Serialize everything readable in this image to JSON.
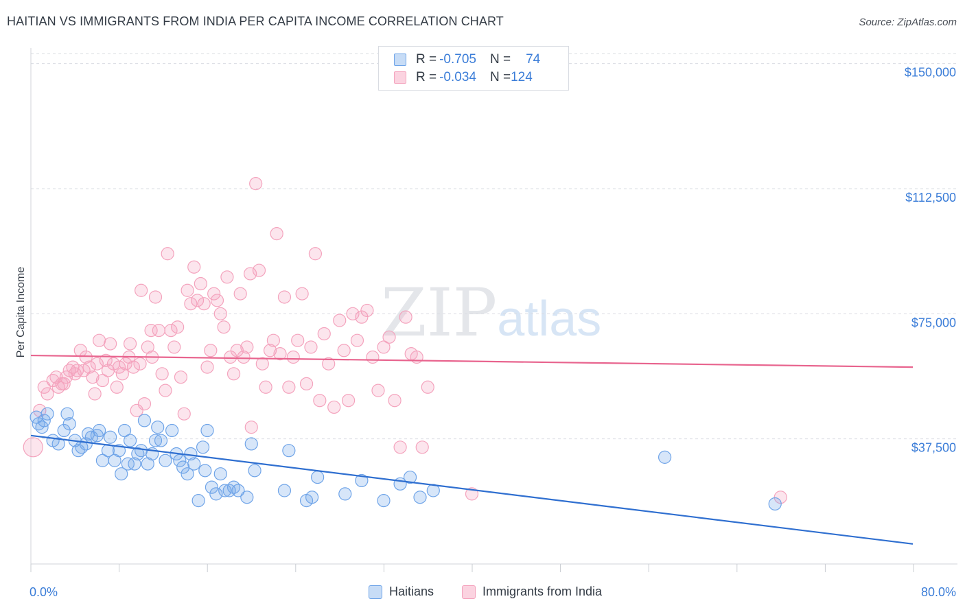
{
  "title": "HAITIAN VS IMMIGRANTS FROM INDIA PER CAPITA INCOME CORRELATION CHART",
  "source": "Source: ZipAtlas.com",
  "watermark": {
    "zip": "ZIP",
    "atlas": "atlas"
  },
  "colors": {
    "haitians": "#6fa4e8",
    "haitians_line": "#2f6fd0",
    "india": "#f4a3bd",
    "india_line": "#e8648e",
    "grid": "#d9dce2",
    "tick_text": "#3b7dd8"
  },
  "legend": {
    "rows": [
      {
        "r_label": "R = ",
        "r_value": "-0.705",
        "n_label": "N = ",
        "n_value": "74"
      },
      {
        "r_label": "R = ",
        "r_value": "-0.034",
        "n_label": "N = ",
        "n_value": "124"
      }
    ]
  },
  "bottom_legend": [
    "Haitians",
    "Immigrants from India"
  ],
  "chart_data": {
    "type": "scatter",
    "title": "HAITIAN VS IMMIGRANTS FROM INDIA PER CAPITA INCOME CORRELATION CHART",
    "xlabel": "",
    "ylabel": "Per Capita Income",
    "xlim": [
      0,
      80
    ],
    "ylim": [
      0,
      153000
    ],
    "x_tick_labels": [
      "0.0%",
      "80.0%"
    ],
    "y_ticks": [
      37500,
      75000,
      112500,
      150000
    ],
    "y_tick_labels": [
      "$37,500",
      "$75,000",
      "$112,500",
      "$150,000"
    ],
    "grid": true,
    "legend_position": "top-center",
    "series": [
      {
        "name": "Haitians",
        "r": -0.705,
        "n": 74,
        "trend": [
          [
            0,
            38500
          ],
          [
            80,
            6000
          ]
        ],
        "points": [
          [
            0.5,
            44000
          ],
          [
            0.7,
            42000
          ],
          [
            1.0,
            41000
          ],
          [
            1.2,
            43000
          ],
          [
            1.5,
            45000
          ],
          [
            2.0,
            37000
          ],
          [
            2.5,
            36000
          ],
          [
            3.0,
            40000
          ],
          [
            3.3,
            45000
          ],
          [
            3.5,
            42000
          ],
          [
            4.0,
            37000
          ],
          [
            4.3,
            34000
          ],
          [
            4.6,
            35000
          ],
          [
            5.0,
            36000
          ],
          [
            5.2,
            39000
          ],
          [
            5.5,
            38000
          ],
          [
            6.0,
            38500
          ],
          [
            6.2,
            40000
          ],
          [
            6.5,
            31000
          ],
          [
            7.0,
            34000
          ],
          [
            7.2,
            38000
          ],
          [
            7.6,
            31000
          ],
          [
            8.0,
            34000
          ],
          [
            8.2,
            27000
          ],
          [
            8.5,
            40000
          ],
          [
            8.8,
            30000
          ],
          [
            9.0,
            37000
          ],
          [
            9.4,
            30000
          ],
          [
            9.7,
            33000
          ],
          [
            10.0,
            34000
          ],
          [
            10.3,
            43000
          ],
          [
            10.6,
            30000
          ],
          [
            11.0,
            33000
          ],
          [
            11.3,
            37000
          ],
          [
            11.5,
            41000
          ],
          [
            11.8,
            37000
          ],
          [
            12.2,
            31000
          ],
          [
            12.8,
            40000
          ],
          [
            13.2,
            33000
          ],
          [
            13.5,
            31000
          ],
          [
            13.8,
            29000
          ],
          [
            14.2,
            27000
          ],
          [
            14.5,
            33000
          ],
          [
            14.8,
            30000
          ],
          [
            15.2,
            19000
          ],
          [
            15.6,
            35000
          ],
          [
            15.8,
            28000
          ],
          [
            16.0,
            40000
          ],
          [
            16.4,
            23000
          ],
          [
            16.8,
            21000
          ],
          [
            17.2,
            27000
          ],
          [
            17.6,
            22000
          ],
          [
            18.0,
            22000
          ],
          [
            18.4,
            23000
          ],
          [
            18.8,
            22000
          ],
          [
            19.6,
            20000
          ],
          [
            20.0,
            36000
          ],
          [
            20.3,
            28000
          ],
          [
            23.0,
            22000
          ],
          [
            23.4,
            34000
          ],
          [
            25.0,
            19000
          ],
          [
            25.5,
            20000
          ],
          [
            26.0,
            26000
          ],
          [
            28.5,
            21000
          ],
          [
            30.0,
            25000
          ],
          [
            32.0,
            19000
          ],
          [
            33.5,
            24000
          ],
          [
            34.4,
            26000
          ],
          [
            35.3,
            20000
          ],
          [
            36.5,
            22000
          ],
          [
            57.5,
            32000
          ],
          [
            67.5,
            18000
          ]
        ]
      },
      {
        "name": "Immigrants from India",
        "r": -0.034,
        "n": 124,
        "trend": [
          [
            0,
            62500
          ],
          [
            80,
            59000
          ]
        ],
        "points": [
          [
            0.2,
            35000
          ],
          [
            0.8,
            46000
          ],
          [
            1.2,
            53000
          ],
          [
            1.5,
            51000
          ],
          [
            2.0,
            55000
          ],
          [
            2.3,
            56000
          ],
          [
            2.5,
            53000
          ],
          [
            2.8,
            54000
          ],
          [
            3.0,
            54000
          ],
          [
            3.2,
            56000
          ],
          [
            3.5,
            58000
          ],
          [
            3.8,
            59000
          ],
          [
            4.0,
            57000
          ],
          [
            4.2,
            58000
          ],
          [
            4.5,
            64000
          ],
          [
            4.8,
            58000
          ],
          [
            5.0,
            62000
          ],
          [
            5.3,
            59000
          ],
          [
            5.6,
            56000
          ],
          [
            5.8,
            51000
          ],
          [
            6.0,
            60000
          ],
          [
            6.2,
            67000
          ],
          [
            6.5,
            55000
          ],
          [
            6.8,
            61000
          ],
          [
            7.0,
            58000
          ],
          [
            7.2,
            66000
          ],
          [
            7.5,
            60000
          ],
          [
            7.8,
            53000
          ],
          [
            8.0,
            59000
          ],
          [
            8.3,
            57000
          ],
          [
            8.6,
            60000
          ],
          [
            8.9,
            62000
          ],
          [
            9.0,
            66000
          ],
          [
            9.3,
            59000
          ],
          [
            9.6,
            46000
          ],
          [
            9.9,
            60000
          ],
          [
            10.0,
            82000
          ],
          [
            10.3,
            48000
          ],
          [
            10.6,
            65000
          ],
          [
            10.9,
            70000
          ],
          [
            11.0,
            62000
          ],
          [
            11.3,
            80000
          ],
          [
            11.6,
            70000
          ],
          [
            11.9,
            57000
          ],
          [
            12.2,
            52000
          ],
          [
            12.4,
            93000
          ],
          [
            12.7,
            70000
          ],
          [
            13.0,
            65000
          ],
          [
            13.3,
            71000
          ],
          [
            13.6,
            56000
          ],
          [
            13.9,
            45000
          ],
          [
            14.2,
            82000
          ],
          [
            14.5,
            78000
          ],
          [
            14.8,
            89000
          ],
          [
            15.1,
            79000
          ],
          [
            15.4,
            84000
          ],
          [
            15.7,
            78000
          ],
          [
            16.0,
            59000
          ],
          [
            16.3,
            64000
          ],
          [
            16.6,
            81000
          ],
          [
            16.9,
            79000
          ],
          [
            17.2,
            75000
          ],
          [
            17.5,
            71000
          ],
          [
            17.8,
            86000
          ],
          [
            18.1,
            62000
          ],
          [
            18.4,
            57000
          ],
          [
            18.7,
            64000
          ],
          [
            19.0,
            81000
          ],
          [
            19.3,
            62000
          ],
          [
            19.6,
            65000
          ],
          [
            19.9,
            87000
          ],
          [
            20.0,
            41000
          ],
          [
            20.4,
            114000
          ],
          [
            20.7,
            88000
          ],
          [
            21.0,
            60000
          ],
          [
            21.3,
            53000
          ],
          [
            21.7,
            64000
          ],
          [
            22.0,
            67000
          ],
          [
            22.3,
            99000
          ],
          [
            22.6,
            63000
          ],
          [
            23.0,
            80000
          ],
          [
            23.4,
            53000
          ],
          [
            23.8,
            62000
          ],
          [
            24.2,
            67000
          ],
          [
            24.6,
            81000
          ],
          [
            25.0,
            54000
          ],
          [
            25.4,
            65000
          ],
          [
            25.8,
            93000
          ],
          [
            26.2,
            49000
          ],
          [
            26.6,
            69000
          ],
          [
            27.0,
            60000
          ],
          [
            27.5,
            47000
          ],
          [
            28.0,
            73000
          ],
          [
            28.4,
            64000
          ],
          [
            28.8,
            49000
          ],
          [
            29.2,
            75000
          ],
          [
            29.6,
            67000
          ],
          [
            30.0,
            74000
          ],
          [
            30.5,
            76000
          ],
          [
            31.0,
            62000
          ],
          [
            31.5,
            52000
          ],
          [
            32.0,
            65000
          ],
          [
            32.5,
            68000
          ],
          [
            33.0,
            49000
          ],
          [
            33.5,
            35000
          ],
          [
            34.0,
            74000
          ],
          [
            34.5,
            63000
          ],
          [
            35.0,
            62000
          ],
          [
            35.5,
            35000
          ],
          [
            36.0,
            53000
          ],
          [
            40.0,
            21000
          ],
          [
            68.0,
            20000
          ]
        ]
      }
    ]
  }
}
